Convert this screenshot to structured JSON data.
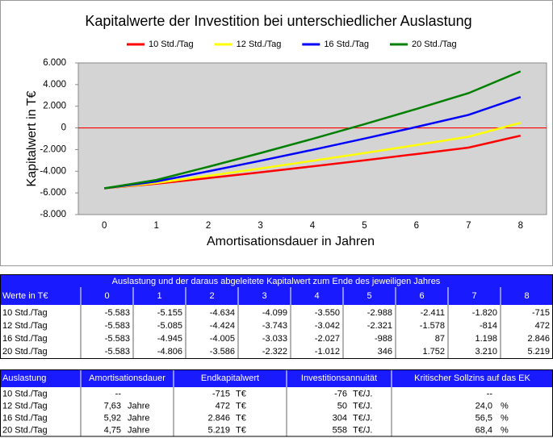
{
  "chart_data": {
    "type": "line",
    "title": "Kapitalwerte der Investition bei unterschiedlicher Auslastung",
    "x_label": "Amortisationsdauer in Jahren",
    "y_label": "Kapitalwert in T€",
    "categories": [
      "0",
      "1",
      "2",
      "3",
      "4",
      "5",
      "6",
      "7",
      "8"
    ],
    "series": [
      {
        "name": "10 Std./Tag",
        "color": "#ff0000",
        "values": [
          -5583,
          -5155,
          -4634,
          -4099,
          -3550,
          -2988,
          -2411,
          -1820,
          -715
        ],
        "value_labels": [
          "-5.583",
          "-5.155",
          "-4.634",
          "-4.099",
          "-3.550",
          "-2.988",
          "-2.411",
          "-1.820",
          "-715"
        ]
      },
      {
        "name": "12 Std./Tag",
        "color": "#ffff00",
        "values": [
          -5583,
          -5085,
          -4424,
          -3743,
          -3042,
          -2321,
          -1578,
          -814,
          472
        ],
        "value_labels": [
          "-5.583",
          "-5.085",
          "-4.424",
          "-3.743",
          "-3.042",
          "-2.321",
          "-1.578",
          "-814",
          "472"
        ]
      },
      {
        "name": "16 Std./Tag",
        "color": "#0000ff",
        "values": [
          -5583,
          -4945,
          -4005,
          -3033,
          -2027,
          -988,
          87,
          1198,
          2846
        ],
        "value_labels": [
          "-5.583",
          "-4.945",
          "-4.005",
          "-3.033",
          "-2.027",
          "-988",
          "87",
          "1.198",
          "2.846"
        ]
      },
      {
        "name": "20 Std./Tag",
        "color": "#008000",
        "values": [
          -5583,
          -4806,
          -3586,
          -2322,
          -1012,
          346,
          1752,
          3210,
          5219
        ],
        "value_labels": [
          "-5.583",
          "-4.806",
          "-3.586",
          "-2.322",
          "-1.012",
          "346",
          "1.752",
          "3.210",
          "5.219"
        ]
      }
    ],
    "ylim": [
      -8000,
      6000
    ],
    "yticks": [
      {
        "value": 6000,
        "label": "6.000"
      },
      {
        "value": 4000,
        "label": "4.000"
      },
      {
        "value": 2000,
        "label": "2.000"
      },
      0,
      {
        "value": -2000,
        "label": "-2.000"
      },
      {
        "value": -4000,
        "label": "-4.000"
      },
      {
        "value": -6000,
        "label": "-6.000"
      },
      {
        "value": -8000,
        "label": "-8.000"
      }
    ],
    "reference_line": {
      "value": 0,
      "color": "#ff0000"
    },
    "legend": "top",
    "grid": false
  },
  "values_table": {
    "caption": "Auslastung und der daraus abgeleitete Kapitalwert zum Ende des jeweiligen Jahres",
    "row_header": "Werte in T€"
  },
  "summary_table": {
    "header": [
      "Auslastung",
      "Amortisationsdauer",
      "Endkapitalwert",
      "Investitionsannuität",
      "Kritischer Sollzins auf das EK"
    ],
    "rows": [
      {
        "label": "10 Std./Tag",
        "amortisation": "--",
        "end_value": "-715",
        "end_unit": "T€",
        "annuity": "-76",
        "annuity_unit": "T€/J.",
        "rate": "--"
      },
      {
        "label": "12 Std./Tag",
        "amortisation": "7,63",
        "amortisation_unit": "Jahre",
        "end_value": "472",
        "end_unit": "T€",
        "annuity": "50",
        "annuity_unit": "T€/J.",
        "rate": "24,0",
        "rate_unit": "%"
      },
      {
        "label": "16 Std./Tag",
        "amortisation": "5,92",
        "amortisation_unit": "Jahre",
        "end_value": "2.846",
        "end_unit": "T€",
        "annuity": "304",
        "annuity_unit": "T€/J.",
        "rate": "56,5",
        "rate_unit": "%"
      },
      {
        "label": "20 Std./Tag",
        "amortisation": "4,75",
        "amortisation_unit": "Jahre",
        "end_value": "5.219",
        "end_unit": "T€",
        "annuity": "558",
        "annuity_unit": "T€/J.",
        "rate": "68,4",
        "rate_unit": "%"
      }
    ]
  }
}
